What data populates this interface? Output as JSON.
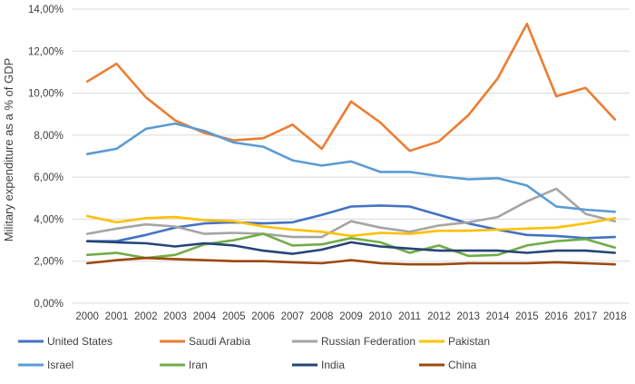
{
  "chart_data": {
    "type": "line",
    "title": "",
    "xlabel": "",
    "ylabel": "Military expenditure as a % of GDP",
    "x": [
      2000,
      2001,
      2002,
      2003,
      2004,
      2005,
      2006,
      2007,
      2008,
      2009,
      2010,
      2011,
      2012,
      2013,
      2014,
      2015,
      2016,
      2017,
      2018
    ],
    "ylim": [
      0,
      14
    ],
    "yticks": [
      0,
      2,
      4,
      6,
      8,
      10,
      12,
      14
    ],
    "ytick_labels": [
      "0,00%",
      "2,00%",
      "4,00%",
      "6,00%",
      "8,00%",
      "10,00%",
      "12,00%",
      "14,00%"
    ],
    "xtick_labels": [
      "2000",
      "2001",
      "2002",
      "2003",
      "2004",
      "2005",
      "2006",
      "2007",
      "2008",
      "2009",
      "2010",
      "2011",
      "2012",
      "2013",
      "2014",
      "2015",
      "2016",
      "2017",
      "2018"
    ],
    "grid": true,
    "legend_position": "bottom",
    "series": [
      {
        "name": "United States",
        "color": "#4472C4",
        "values": [
          2.95,
          2.95,
          3.25,
          3.6,
          3.8,
          3.85,
          3.8,
          3.85,
          4.2,
          4.6,
          4.65,
          4.6,
          4.2,
          3.8,
          3.5,
          3.25,
          3.2,
          3.1,
          3.15
        ]
      },
      {
        "name": "Saudi Arabia",
        "color": "#ED7D31",
        "values": [
          10.55,
          11.4,
          9.8,
          8.7,
          8.1,
          7.75,
          7.85,
          8.5,
          7.35,
          9.6,
          8.6,
          7.25,
          7.7,
          8.95,
          10.7,
          13.3,
          9.85,
          10.25,
          8.75
        ]
      },
      {
        "name": "Russian Federation",
        "color": "#A5A5A5",
        "values": [
          3.3,
          3.55,
          3.75,
          3.65,
          3.3,
          3.35,
          3.3,
          3.15,
          3.15,
          3.9,
          3.6,
          3.4,
          3.7,
          3.85,
          4.1,
          4.85,
          5.45,
          4.25,
          3.9
        ]
      },
      {
        "name": "Pakistan",
        "color": "#FFC000",
        "values": [
          4.15,
          3.85,
          4.05,
          4.1,
          3.95,
          3.9,
          3.65,
          3.5,
          3.4,
          3.2,
          3.35,
          3.3,
          3.45,
          3.45,
          3.5,
          3.55,
          3.6,
          3.8,
          4.05
        ]
      },
      {
        "name": "Israel",
        "color": "#5B9BD5",
        "values": [
          7.1,
          7.35,
          8.3,
          8.55,
          8.2,
          7.65,
          7.45,
          6.8,
          6.55,
          6.75,
          6.25,
          6.25,
          6.05,
          5.9,
          5.95,
          5.6,
          4.6,
          4.45,
          4.35
        ]
      },
      {
        "name": "Iran",
        "color": "#70AD47",
        "values": [
          2.3,
          2.4,
          2.15,
          2.3,
          2.8,
          3.0,
          3.3,
          2.75,
          2.8,
          3.1,
          2.9,
          2.4,
          2.75,
          2.25,
          2.3,
          2.75,
          2.95,
          3.05,
          2.65
        ]
      },
      {
        "name": "India",
        "color": "#264478",
        "values": [
          2.95,
          2.9,
          2.85,
          2.7,
          2.85,
          2.75,
          2.5,
          2.35,
          2.55,
          2.9,
          2.7,
          2.6,
          2.5,
          2.5,
          2.5,
          2.4,
          2.5,
          2.5,
          2.4
        ]
      },
      {
        "name": "China",
        "color": "#9E480E",
        "values": [
          1.9,
          2.05,
          2.15,
          2.1,
          2.05,
          2.0,
          2.0,
          1.95,
          1.9,
          2.05,
          1.9,
          1.85,
          1.85,
          1.9,
          1.9,
          1.9,
          1.95,
          1.9,
          1.85
        ]
      }
    ]
  }
}
